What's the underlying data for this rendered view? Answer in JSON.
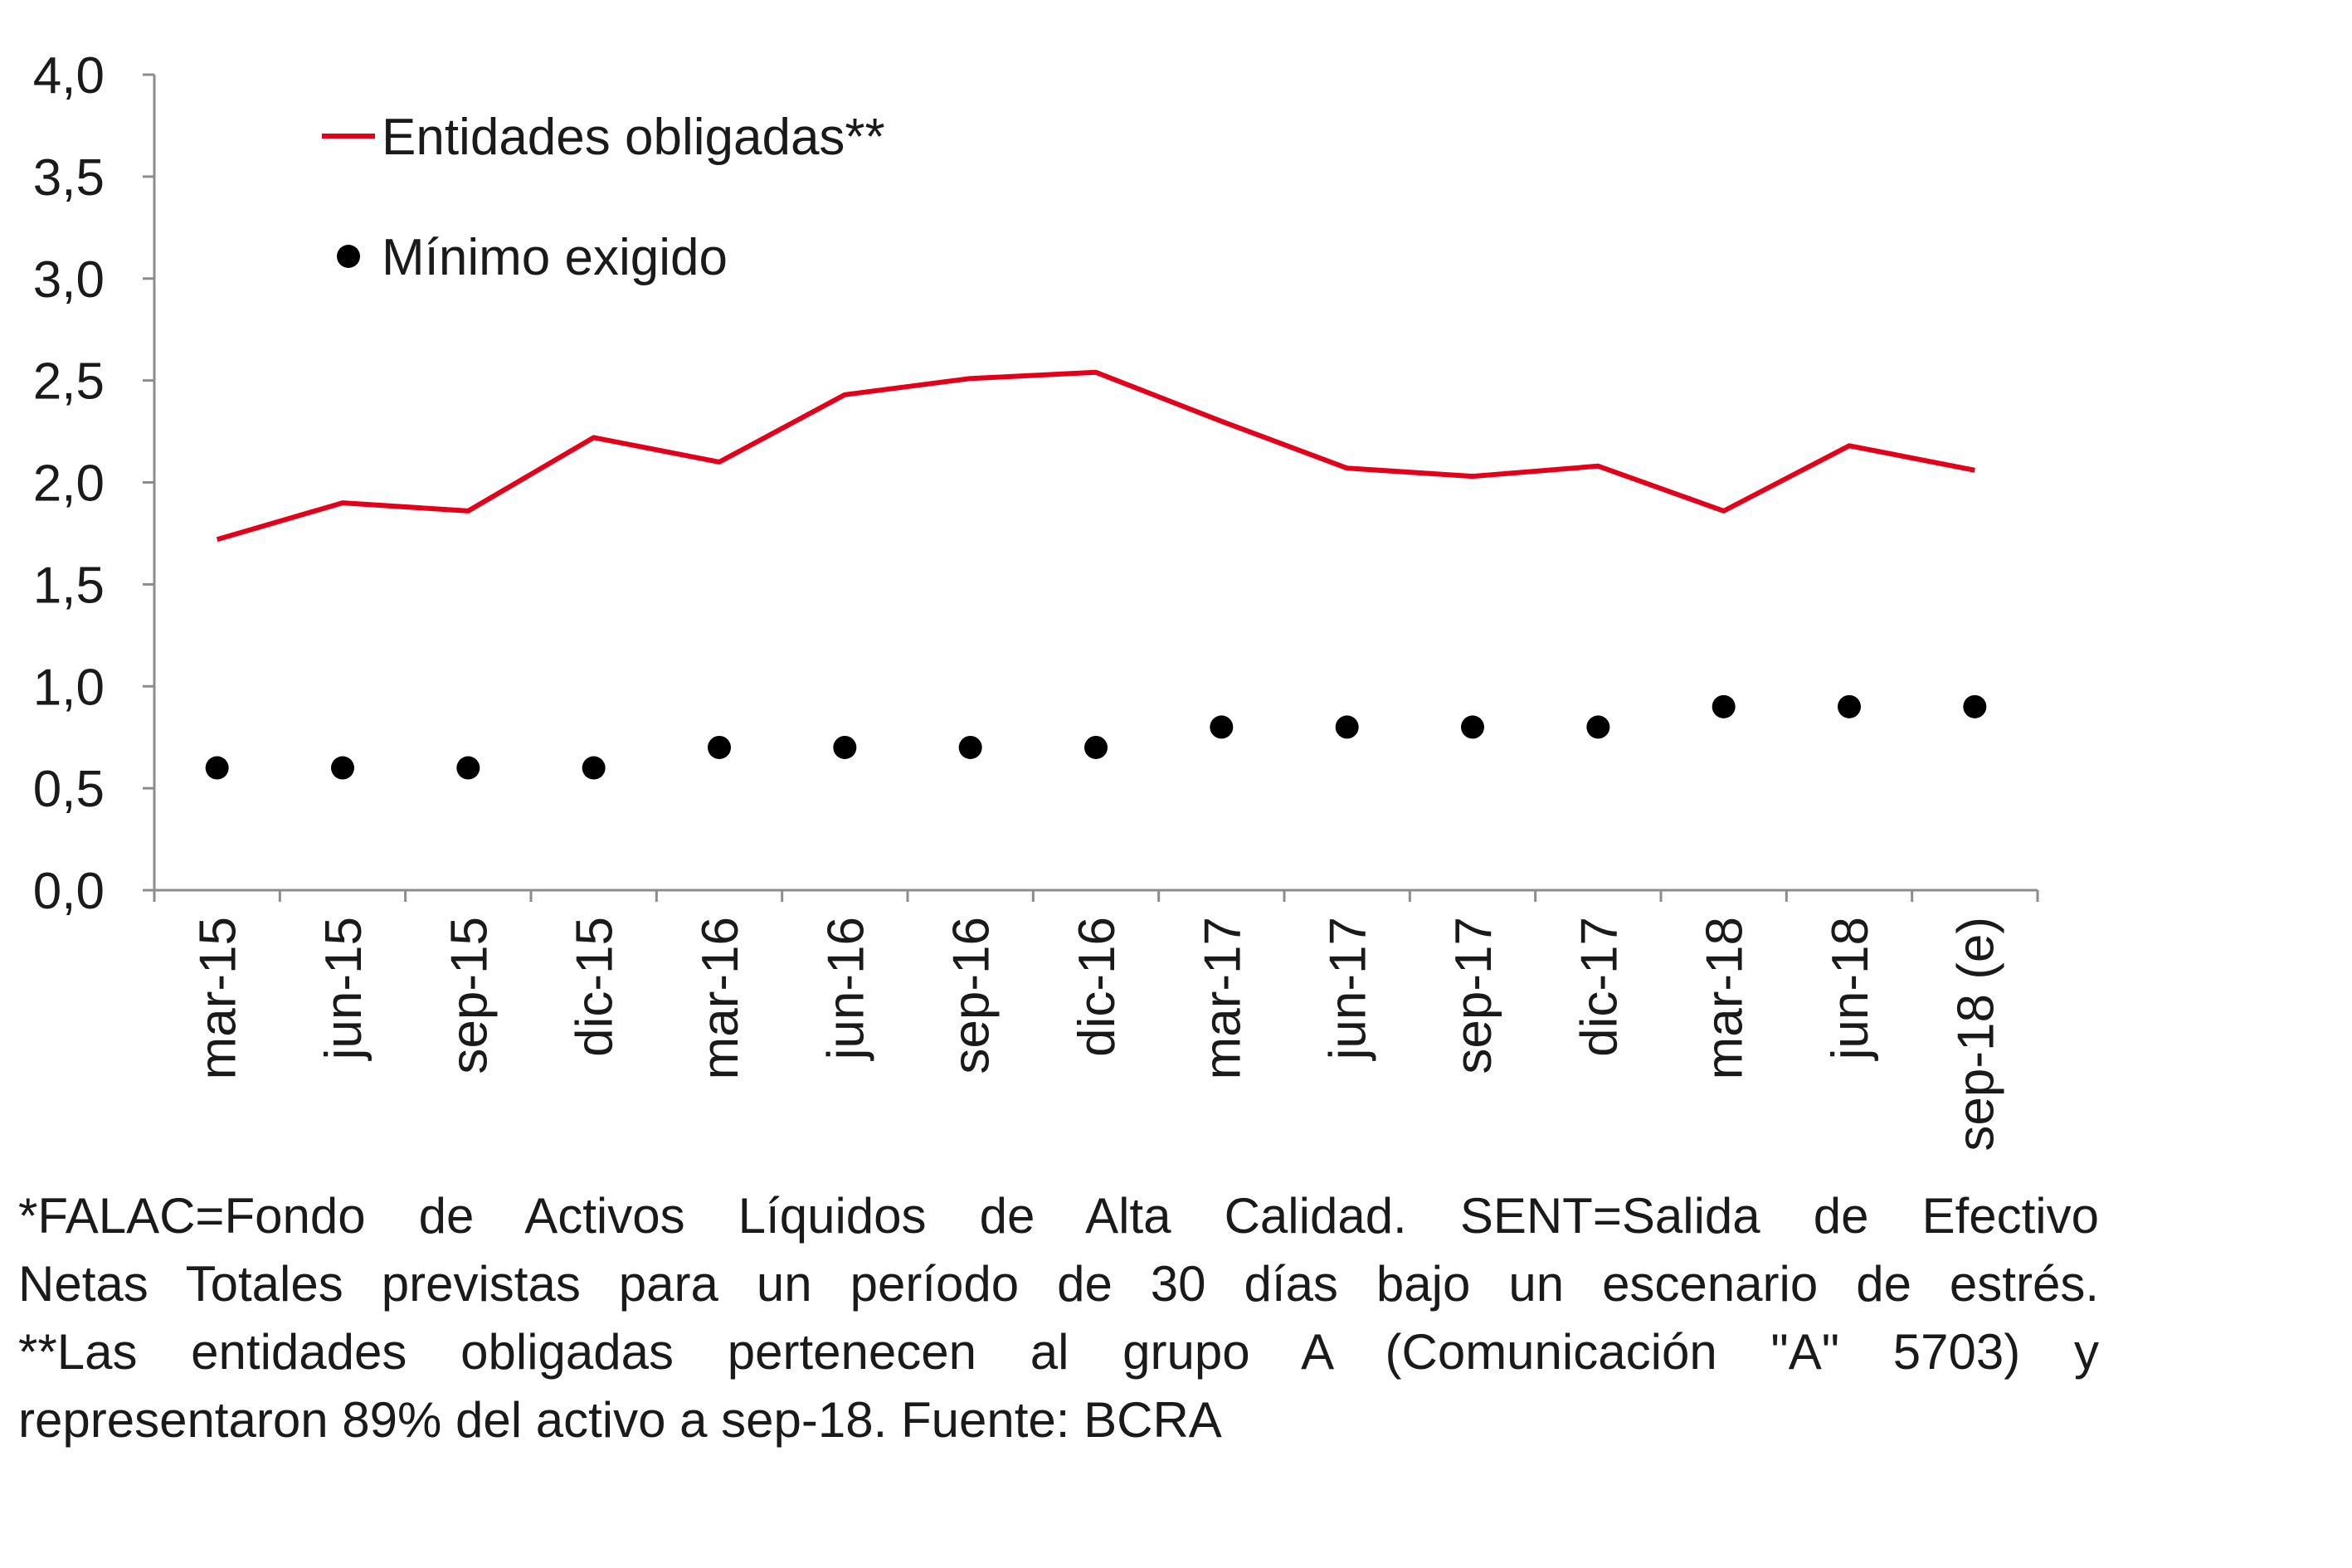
{
  "chart_data": {
    "type": "line",
    "categories": [
      "mar-15",
      "jun-15",
      "sep-15",
      "dic-15",
      "mar-16",
      "jun-16",
      "sep-16",
      "dic-16",
      "mar-17",
      "jun-17",
      "sep-17",
      "dic-17",
      "mar-18",
      "jun-18",
      "sep-18 (e)"
    ],
    "series": [
      {
        "name": "Entidades obligadas**",
        "style": "line",
        "color": "#e3001b",
        "values": [
          1.72,
          1.9,
          1.86,
          2.22,
          2.1,
          2.43,
          2.51,
          2.54,
          2.3,
          2.07,
          2.03,
          2.08,
          1.86,
          2.18,
          2.06
        ]
      },
      {
        "name": "Mínimo exigido",
        "style": "marker",
        "color": "#000000",
        "values": [
          0.6,
          0.6,
          0.6,
          0.6,
          0.7,
          0.7,
          0.7,
          0.7,
          0.8,
          0.8,
          0.8,
          0.8,
          0.9,
          0.9,
          0.9
        ]
      }
    ],
    "ylim": [
      0,
      4
    ],
    "yticks": [
      "0,0",
      "0,5",
      "1,0",
      "1,5",
      "2,0",
      "2,5",
      "3,0",
      "3,5",
      "4,0"
    ],
    "legend_position": "top-left",
    "grid": false
  },
  "notes": {
    "line1": "*FALAC=Fondo de Activos Líquidos de Alta Calidad. SENT=Salida de Efectivo",
    "line2": "Netas Totales previstas para un período de 30 días bajo un escenario de estrés.",
    "line3": "**Las entidades obligadas pertenecen al grupo A (Comunicación \"A\" 5703) y",
    "line4": "representaron 89% del activo a sep-18. Fuente: BCRA"
  }
}
